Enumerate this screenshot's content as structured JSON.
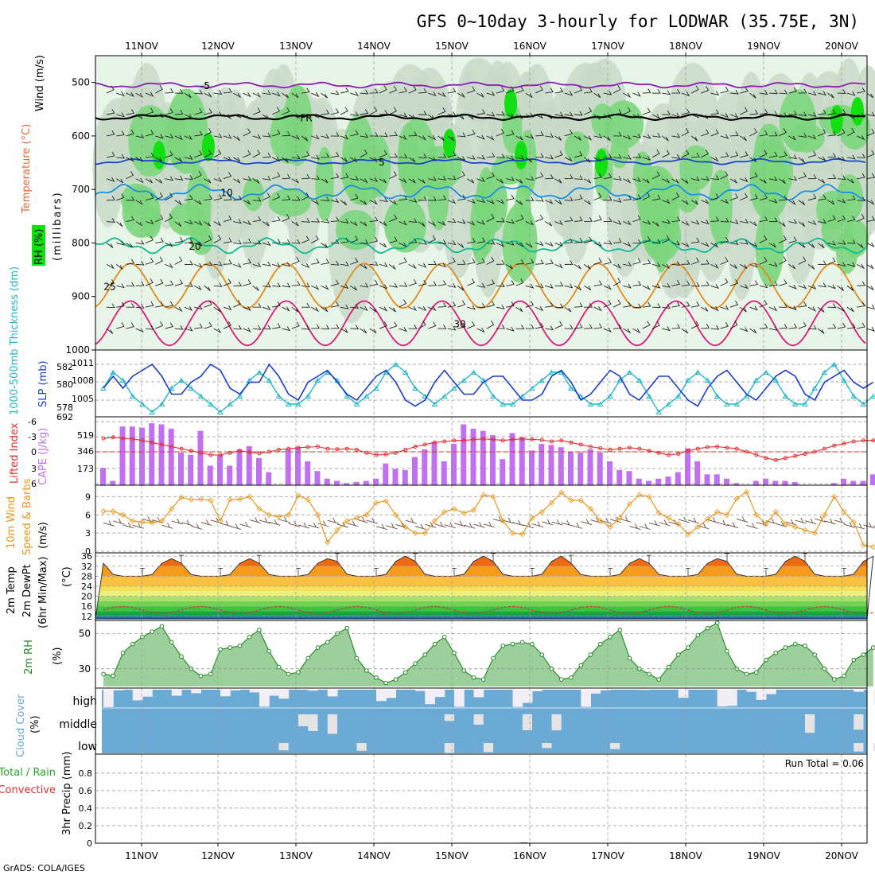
{
  "title": "GFS 0~10day 3-hourly for LODWAR (35.75E, 3N)",
  "footer": "GrADS: COLA/IGES",
  "colors": {
    "rh_light": "#e8f4e8",
    "rh_mid": "#c9d9c9",
    "rh_green": "#7cd67c",
    "rh_bright": "#10e010",
    "thickness": "#20b8c8",
    "slp": "#1a3ccc",
    "cape": "#c070f0",
    "lifted_index": "#e03030",
    "wind": "#e8961a",
    "barb": "#6b4a3a",
    "rh2m": "#228822",
    "cloud": "#6aaad4",
    "cloud_gap": "#e4e4e4"
  },
  "chart_data": [
    {
      "id": "upper",
      "type": "heatmap",
      "ylabels": [
        "Temperature (°C)",
        "Wind (m/s)",
        "(millibars)",
        "RH (%)"
      ],
      "x": [
        "11NOV",
        "12NOV",
        "13NOV",
        "14NOV",
        "15NOV",
        "16NOV",
        "17NOV",
        "18NOV",
        "19NOV",
        "20NOV"
      ],
      "yticks": [
        500,
        600,
        700,
        800,
        900,
        1000
      ],
      "ylim": [
        450,
        1000
      ],
      "isotherms": [
        {
          "label": "-5",
          "level": 505,
          "color": "#8b1ab8"
        },
        {
          "label": "FR",
          "level": 565,
          "color": "#000000"
        },
        {
          "label": "5",
          "level": 648,
          "color": "#1a44cc"
        },
        {
          "label": "10",
          "level": 705,
          "color": "#1a90e0"
        },
        {
          "label": "20",
          "level": 805,
          "color": "#10b890"
        },
        {
          "label": "25",
          "level": 880,
          "color": "#e08a1a"
        },
        {
          "label": "30",
          "level": 950,
          "color": "#d81a7a"
        }
      ]
    },
    {
      "id": "slp",
      "type": "line",
      "ylabel_left": "1000-500mb Thickness (dm)",
      "ylabel_right": "SLP (mb)",
      "yticks_thickness": [
        "582",
        "580",
        "578"
      ],
      "yticks_slp": [
        "1011",
        "1008",
        "1005"
      ],
      "bottom_label": "692",
      "slp": [
        1007,
        1009,
        1007,
        1009,
        1010,
        1011,
        1009,
        1006,
        1006,
        1008,
        1009,
        1011,
        1010,
        1007,
        1006,
        1008,
        1008,
        1011,
        1009,
        1006,
        1005,
        1008,
        1009,
        1010,
        1008,
        1006,
        1005,
        1007,
        1009,
        1010,
        1008,
        1005,
        1004,
        1005,
        1008,
        1010,
        1008,
        1006,
        1006,
        1008,
        1009,
        1009,
        1007,
        1005,
        1005,
        1006,
        1009,
        1010,
        1008,
        1005,
        1006,
        1008,
        1010,
        1009,
        1006,
        1005,
        1007,
        1009,
        1009,
        1007,
        1005,
        1004,
        1007,
        1009,
        1010,
        1008,
        1006,
        1005,
        1007,
        1009,
        1010,
        1009,
        1006,
        1005,
        1008,
        1009,
        1010,
        1008,
        1007,
        1008
      ],
      "thickness": [
        580,
        582,
        581,
        579,
        578,
        577,
        578,
        580,
        581,
        580,
        579,
        578,
        577,
        578,
        579,
        581,
        582,
        581,
        579,
        578,
        578,
        579,
        581,
        582,
        581,
        579,
        578,
        579,
        580,
        582,
        583,
        582,
        580,
        579,
        578,
        579,
        580,
        581,
        582,
        581,
        579,
        578,
        578,
        579,
        580,
        581,
        582,
        582,
        580,
        579,
        578,
        578,
        579,
        581,
        582,
        581,
        579,
        577,
        578,
        579,
        581,
        582,
        581,
        579,
        578,
        578,
        579,
        581,
        582,
        581,
        579,
        578,
        578,
        580,
        582,
        583,
        581,
        579,
        578,
        579
      ]
    },
    {
      "id": "cape",
      "type": "bar",
      "ylabel_left": "Lifted Index",
      "ylabel_right": "CAPE (J/kg)",
      "yticks_li": [
        "-6",
        "-3",
        "0",
        "3",
        "6"
      ],
      "yticks_cape": [
        "519",
        "346",
        "173"
      ],
      "cape": [
        160,
        40,
        540,
        540,
        530,
        570,
        560,
        520,
        300,
        280,
        500,
        180,
        280,
        180,
        330,
        360,
        250,
        120,
        0,
        330,
        350,
        220,
        130,
        60,
        40,
        20,
        30,
        40,
        60,
        200,
        150,
        140,
        260,
        330,
        400,
        220,
        380,
        560,
        520,
        500,
        460,
        240,
        480,
        440,
        320,
        380,
        370,
        350,
        310,
        300,
        330,
        300,
        220,
        140,
        130,
        60,
        40,
        60,
        80,
        120,
        340,
        220,
        100,
        100,
        60,
        20,
        0,
        40,
        60,
        40,
        40,
        30,
        0,
        0,
        0,
        20,
        60,
        40,
        40,
        100,
        200,
        260,
        230,
        270,
        330,
        300
      ],
      "lifted_index": [
        -2.6,
        -2.8,
        -2.6,
        -2.5,
        -2.2,
        -1.8,
        -1.4,
        -1.0,
        -0.6,
        -0.2,
        0.2,
        0.6,
        0.6,
        0.2,
        -0.2,
        0.1,
        0.3,
        0.0,
        -0.4,
        -0.6,
        -0.8,
        -0.9,
        -1.0,
        -0.6,
        -0.5,
        -0.6,
        -0.4,
        0.2,
        0.6,
        0.5,
        0.2,
        -0.4,
        -1.0,
        -1.4,
        -1.8,
        -2.0,
        -2.2,
        -2.2,
        -2.4,
        -2.5,
        -2.4,
        -2.2,
        -2.4,
        -2.5,
        -2.4,
        -2.3,
        -2.0,
        -2.2,
        -1.8,
        -1.4,
        -1.0,
        -0.7,
        -0.4,
        -0.6,
        -0.8,
        -0.6,
        -0.2,
        0.2,
        0.6,
        0.4,
        -0.2,
        -0.6,
        -0.9,
        -1.0,
        -0.8,
        -0.6,
        0.0,
        0.6,
        1.2,
        1.6,
        1.2,
        0.8,
        0.4,
        0.0,
        -0.6,
        -1.2,
        -1.6,
        -2.0,
        -2.2,
        -2.2,
        -2.4,
        -2.2,
        -1.8
      ]
    },
    {
      "id": "wind",
      "type": "line",
      "ylabel_left": "10m Wind",
      "ylabel_mid": "Speed & Barbs",
      "ylabel_right": "(m/s)",
      "yticks": [
        "9",
        "6",
        "3",
        "0"
      ],
      "ylim": [
        0,
        10.5
      ],
      "speed": [
        6.6,
        6.6,
        6.0,
        5.0,
        4.8,
        4.7,
        5.0,
        7.0,
        8.9,
        8.5,
        8.6,
        8.4,
        5.0,
        8.5,
        8.6,
        9.0,
        7.0,
        6.0,
        5.7,
        6.0,
        9.2,
        8.5,
        6.0,
        1.5,
        3.5,
        5.0,
        5.5,
        6.0,
        8.0,
        8.3,
        6.0,
        4.0,
        3.0,
        3.0,
        5.0,
        6.5,
        7.0,
        6.3,
        6.8,
        9.3,
        9.0,
        5.0,
        3.0,
        2.8,
        5.5,
        6.5,
        8.0,
        9.7,
        8.4,
        8.4,
        7.0,
        5.0,
        4.0,
        5.5,
        7.8,
        9.3,
        9.0,
        6.3,
        5.5,
        4.5,
        2.8,
        4.0,
        5.3,
        6.5,
        6.0,
        8.7,
        9.8,
        6.0,
        4.5,
        6.5,
        4.5,
        4.0,
        3.5,
        3.0,
        6.0,
        9.0,
        6.5,
        4.8,
        1.0,
        0.7,
        5.0,
        8.3,
        8.5,
        8.2,
        5.0,
        7.5
      ]
    },
    {
      "id": "temp",
      "type": "area",
      "ylabel_left": "2m Temp",
      "ylabel_mid": "2m DewPt",
      "ylabel_mid2": "(6hr Min/Max)",
      "ylabel_right": "(°C)",
      "yticks": [
        "36",
        "32",
        "28",
        "24",
        "20",
        "16",
        "12"
      ],
      "ylim": [
        11,
        37
      ],
      "temp_max_per_day": [
        35,
        35,
        35,
        36,
        36,
        36,
        35,
        35,
        36
      ],
      "temp_min_per_day": [
        28,
        28,
        28,
        28,
        28,
        28,
        28,
        28,
        28
      ],
      "dewpoint_range": [
        13,
        16
      ]
    },
    {
      "id": "rh2m",
      "type": "area",
      "ylabel_left": "2m RH",
      "ylabel_right": "(%)",
      "yticks": [
        "50",
        "30"
      ],
      "ylim": [
        20,
        56
      ],
      "rh": [
        27,
        26,
        39,
        44,
        48,
        51,
        54,
        45,
        37,
        30,
        26,
        27,
        41,
        42,
        43,
        48,
        52,
        40,
        31,
        27,
        28,
        36,
        42,
        45,
        50,
        53,
        36,
        29,
        25,
        22,
        24,
        28,
        33,
        38,
        44,
        48,
        39,
        29,
        25,
        24,
        36,
        43,
        44,
        45,
        44,
        38,
        30,
        24,
        25,
        32,
        38,
        44,
        48,
        52,
        36,
        30,
        27,
        24,
        31,
        38,
        42,
        49,
        53,
        56,
        40,
        30,
        27,
        28,
        35,
        39,
        42,
        44,
        43,
        38,
        30,
        24,
        26,
        35,
        38,
        42,
        44,
        36,
        30,
        26,
        27,
        40,
        45,
        49,
        39
      ]
    },
    {
      "id": "cloud",
      "type": "bar",
      "ylabel_left": "Cloud Cover",
      "ylabel_right": "(%)",
      "levels": [
        "high",
        "middle",
        "low"
      ]
    },
    {
      "id": "precip",
      "type": "bar",
      "ylabel_left": "Total / Rain",
      "ylabel_left2": "Convective",
      "ylabel_right": "3hr Precip (mm)",
      "yticks": [
        "0.8",
        "0.6",
        "0.4",
        "0.2",
        "0"
      ],
      "ylim": [
        0,
        0.98
      ],
      "run_total": "Run Total = 0.06",
      "values": [
        0,
        0,
        0,
        0,
        0,
        0,
        0,
        0,
        0,
        0,
        0,
        0,
        0,
        0,
        0,
        0,
        0,
        0,
        0,
        0,
        0,
        0,
        0,
        0,
        0,
        0,
        0,
        0,
        0,
        0,
        0,
        0,
        0,
        0,
        0,
        0,
        0,
        0,
        0,
        0,
        0,
        0,
        0,
        0.06,
        0,
        0,
        0,
        0,
        0,
        0,
        0,
        0,
        0,
        0,
        0,
        0,
        0,
        0,
        0,
        0,
        0,
        0,
        0,
        0,
        0,
        0,
        0,
        0,
        0,
        0,
        0,
        0,
        0,
        0,
        0,
        0,
        0,
        0,
        0,
        0
      ]
    }
  ]
}
